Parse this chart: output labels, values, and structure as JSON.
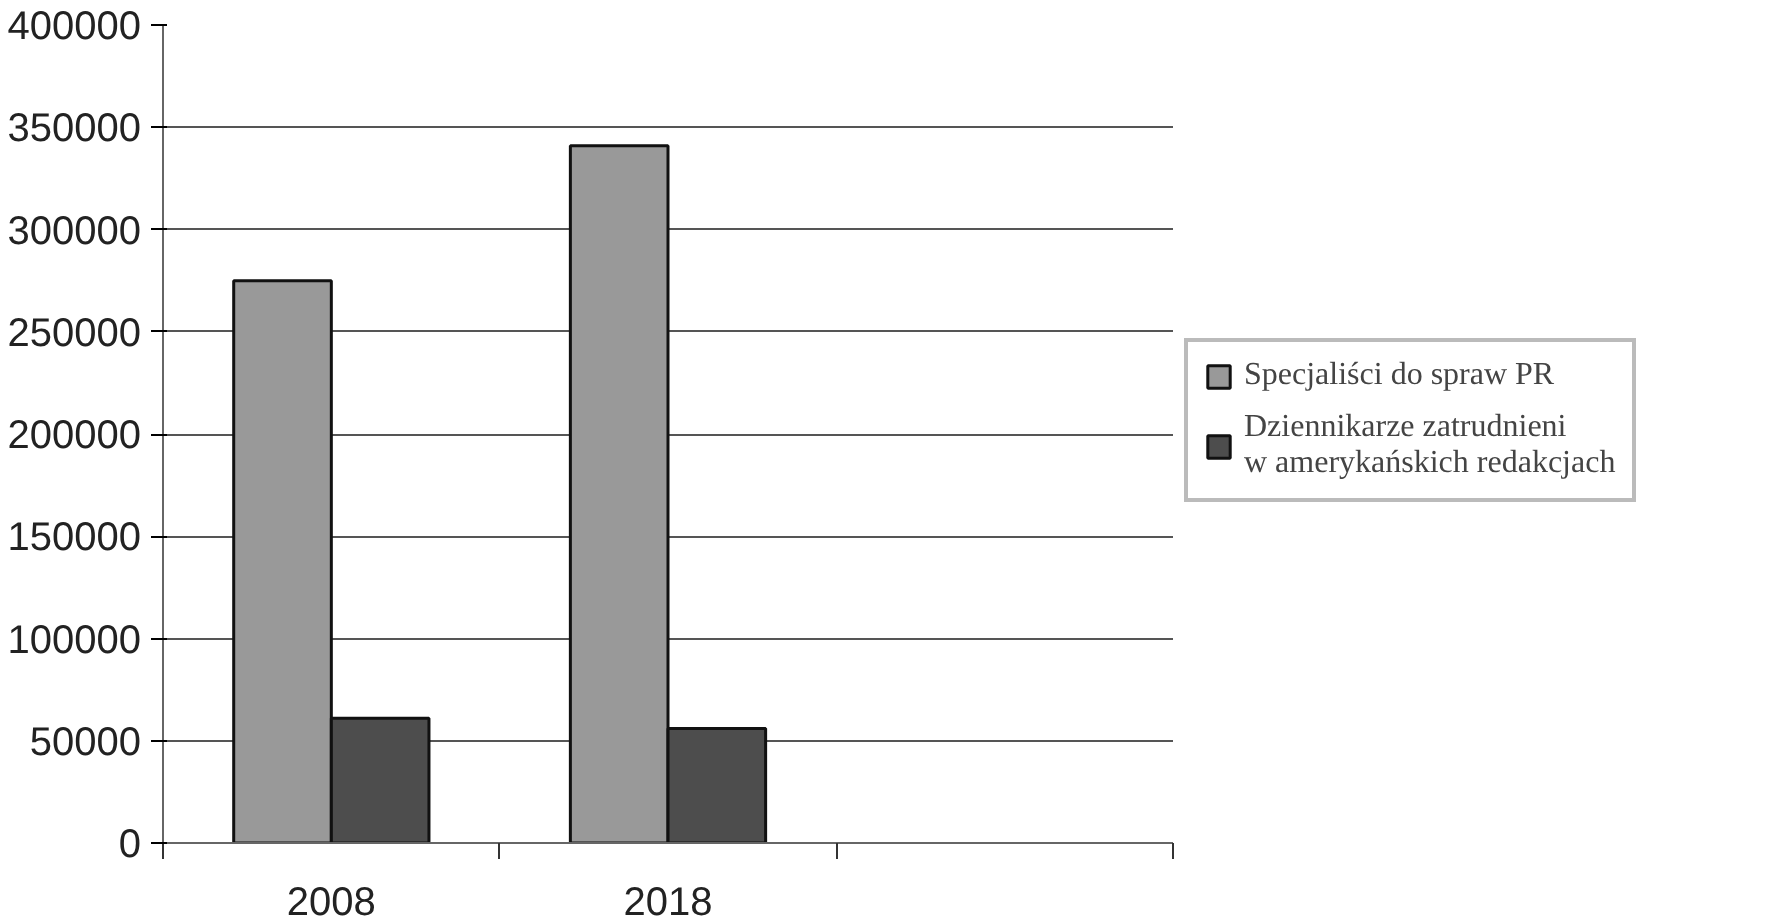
{
  "chart_data": {
    "type": "bar",
    "categories": [
      "2008",
      "2018",
      null
    ],
    "series": [
      {
        "name": "Specjaliści do spraw PR",
        "color": "#999999",
        "values": [
          275000,
          341000,
          null
        ]
      },
      {
        "name": "Dziennikarze zatrudnieni\nw amerykańskich redakcjach",
        "color": "#4d4d4d",
        "values": [
          61000,
          56000,
          null
        ]
      }
    ],
    "ylim": [
      0,
      400000
    ],
    "yticks": [
      0,
      50000,
      100000,
      150000,
      200000,
      250000,
      300000,
      350000,
      400000
    ],
    "grid": "y",
    "legend": "right"
  }
}
